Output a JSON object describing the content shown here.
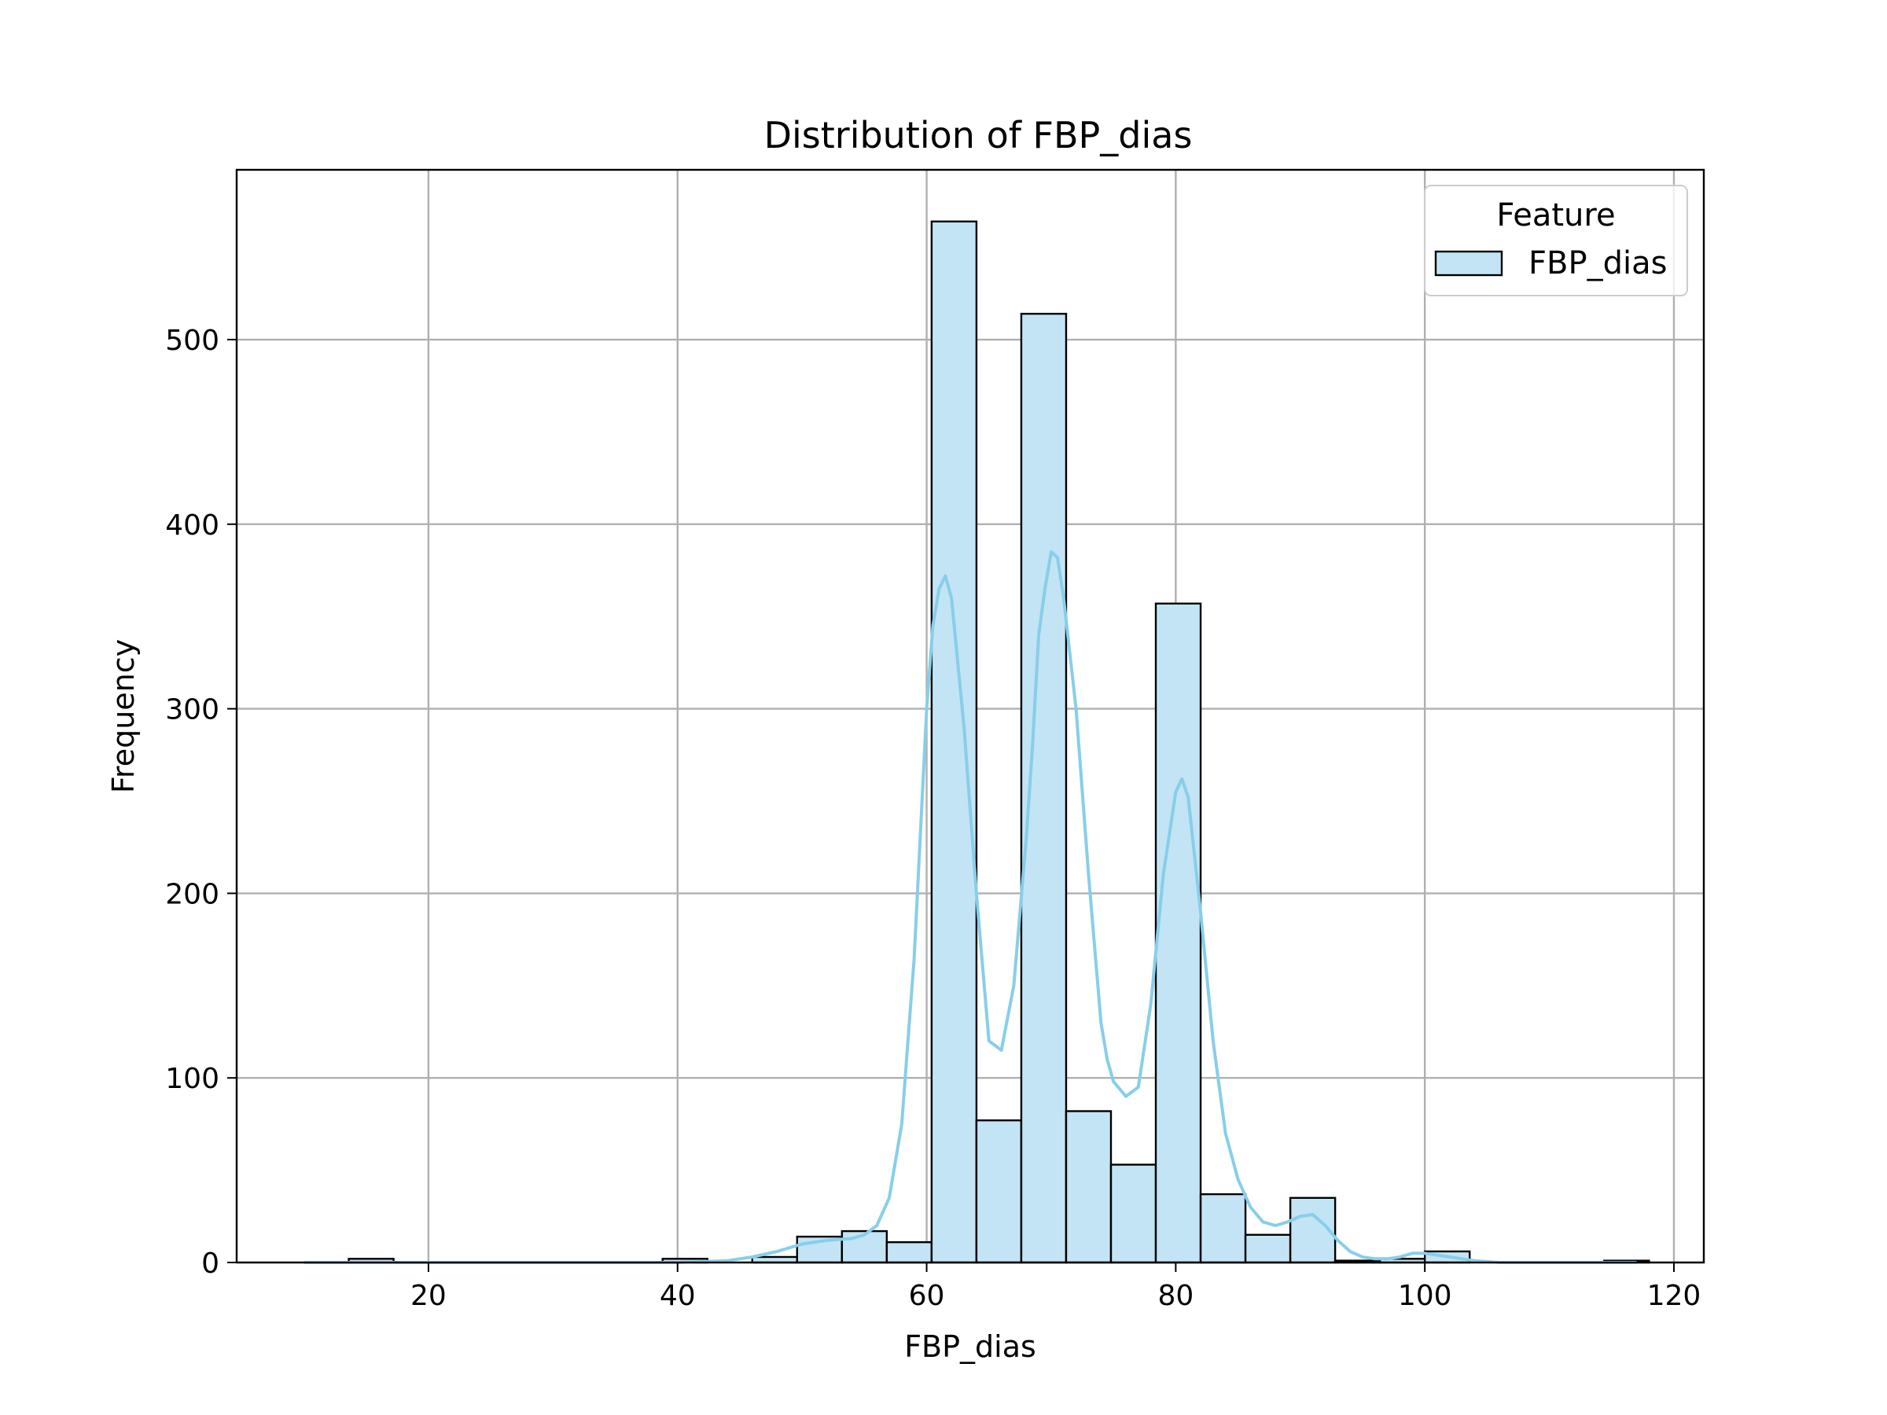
{
  "chart_data": {
    "type": "bar",
    "title": "Distribution of FBP_dias",
    "xlabel": "FBP_dias",
    "ylabel": "Frequency",
    "xlim": [
      4.6,
      122.4
    ],
    "ylim": [
      0,
      592
    ],
    "xticks": [
      20,
      40,
      60,
      80,
      100,
      120
    ],
    "yticks": [
      0,
      100,
      200,
      300,
      400,
      500
    ],
    "grid": true,
    "legend": {
      "title": "Feature",
      "placement": "top-right",
      "entries": [
        "FBP_dias"
      ]
    },
    "colors": {
      "fill": "#c3e4f4",
      "edge": "#000000",
      "kde": "#87ceeb",
      "grid": "#b0b0b0"
    },
    "bin_edges": [
      10,
      13.6,
      17.2,
      20.8,
      24.4,
      28,
      31.6,
      35.2,
      38.8,
      42.4,
      46,
      49.6,
      53.2,
      56.8,
      60.4,
      64,
      67.6,
      71.2,
      74.8,
      78.4,
      82,
      85.6,
      89.2,
      92.8,
      96.4,
      100,
      103.6,
      107.2,
      110.8,
      114.4,
      118
    ],
    "series": [
      {
        "name": "FBP_dias",
        "values": [
          0,
          2,
          0,
          0,
          0,
          0,
          0,
          0,
          2,
          0,
          3,
          14,
          17,
          11,
          564,
          77,
          514,
          82,
          53,
          357,
          37,
          15,
          35,
          1,
          2,
          6,
          0,
          0,
          0,
          1
        ]
      }
    ],
    "kde": {
      "x": [
        10,
        20,
        30,
        40,
        44,
        46,
        48,
        50,
        52,
        54,
        55,
        56,
        57,
        58,
        59,
        60,
        60.5,
        61,
        61.5,
        62,
        63,
        64,
        64.5,
        65,
        66,
        67,
        68,
        68.5,
        69,
        69.5,
        70,
        70.5,
        71,
        72,
        73,
        74,
        74.5,
        75,
        76,
        77,
        78,
        79,
        80,
        80.5,
        81,
        82,
        83,
        84,
        85,
        86,
        87,
        88,
        89,
        90,
        91,
        92,
        93,
        94,
        95,
        96,
        97,
        98,
        99,
        100,
        101,
        102,
        104,
        106,
        110,
        117
      ],
      "y": [
        0,
        0,
        0,
        0,
        1,
        3,
        6,
        10,
        12,
        13,
        15,
        20,
        35,
        75,
        165,
        300,
        345,
        365,
        372,
        360,
        290,
        200,
        160,
        120,
        115,
        150,
        230,
        280,
        340,
        365,
        385,
        382,
        360,
        300,
        210,
        130,
        110,
        98,
        90,
        95,
        140,
        210,
        255,
        262,
        252,
        190,
        120,
        70,
        45,
        30,
        22,
        20,
        22,
        25,
        26,
        20,
        12,
        6,
        3,
        2,
        2,
        3,
        5,
        5,
        4,
        3,
        1,
        0,
        0,
        0
      ]
    }
  }
}
